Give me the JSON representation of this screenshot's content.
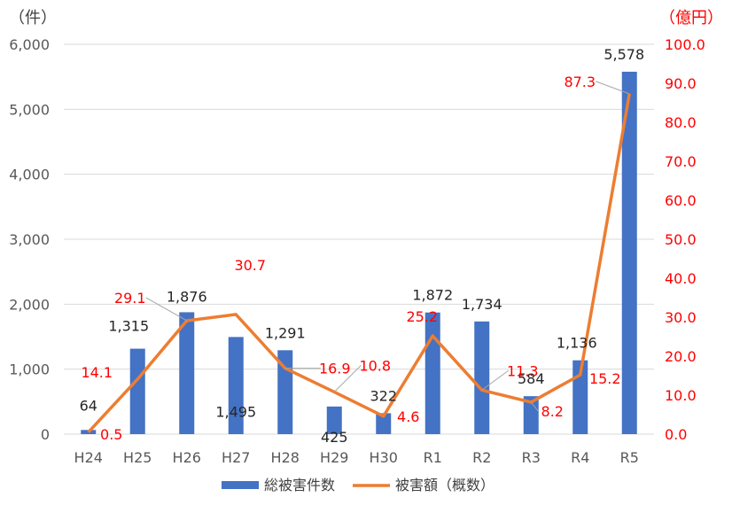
{
  "chart_data": {
    "type": "bar",
    "left_unit": "（件）",
    "right_unit": "（億円）",
    "categories": [
      "H24",
      "H25",
      "H26",
      "H27",
      "H28",
      "H29",
      "H30",
      "R1",
      "R2",
      "R3",
      "R4",
      "R5"
    ],
    "left_axis": {
      "min": 0,
      "max": 6000,
      "ticks": [
        "0",
        "1,000",
        "2,000",
        "3,000",
        "4,000",
        "5,000",
        "6,000"
      ]
    },
    "right_axis": {
      "min": 0,
      "max": 100,
      "ticks": [
        "0.0",
        "10.0",
        "20.0",
        "30.0",
        "40.0",
        "50.0",
        "60.0",
        "70.0",
        "80.0",
        "90.0",
        "100.0"
      ]
    },
    "series": [
      {
        "name": "総被害件数",
        "kind": "bar",
        "axis": "left",
        "color": "#4472C4",
        "values": [
          64,
          1315,
          1876,
          1495,
          1291,
          425,
          322,
          1872,
          1734,
          584,
          1136,
          5578
        ],
        "labels": [
          "64",
          "1,315",
          "1,876",
          "1,495",
          "1,291",
          "425",
          "322",
          "1,872",
          "1,734",
          "584",
          "1,136",
          "5,578"
        ]
      },
      {
        "name": "被害額（概数）",
        "kind": "line",
        "axis": "right",
        "color": "#ED7D31",
        "label_color": "#FF0000",
        "values": [
          0.5,
          14.1,
          29.1,
          30.7,
          16.9,
          10.8,
          4.6,
          25.2,
          11.3,
          8.2,
          15.2,
          87.3
        ],
        "labels": [
          "0.5",
          "14.1",
          "29.1",
          "30.7",
          "16.9",
          "10.8",
          "4.6",
          "25.2",
          "11.3",
          "8.2",
          "15.2",
          "87.3"
        ]
      }
    ],
    "grid": true,
    "legend_position": "bottom"
  }
}
